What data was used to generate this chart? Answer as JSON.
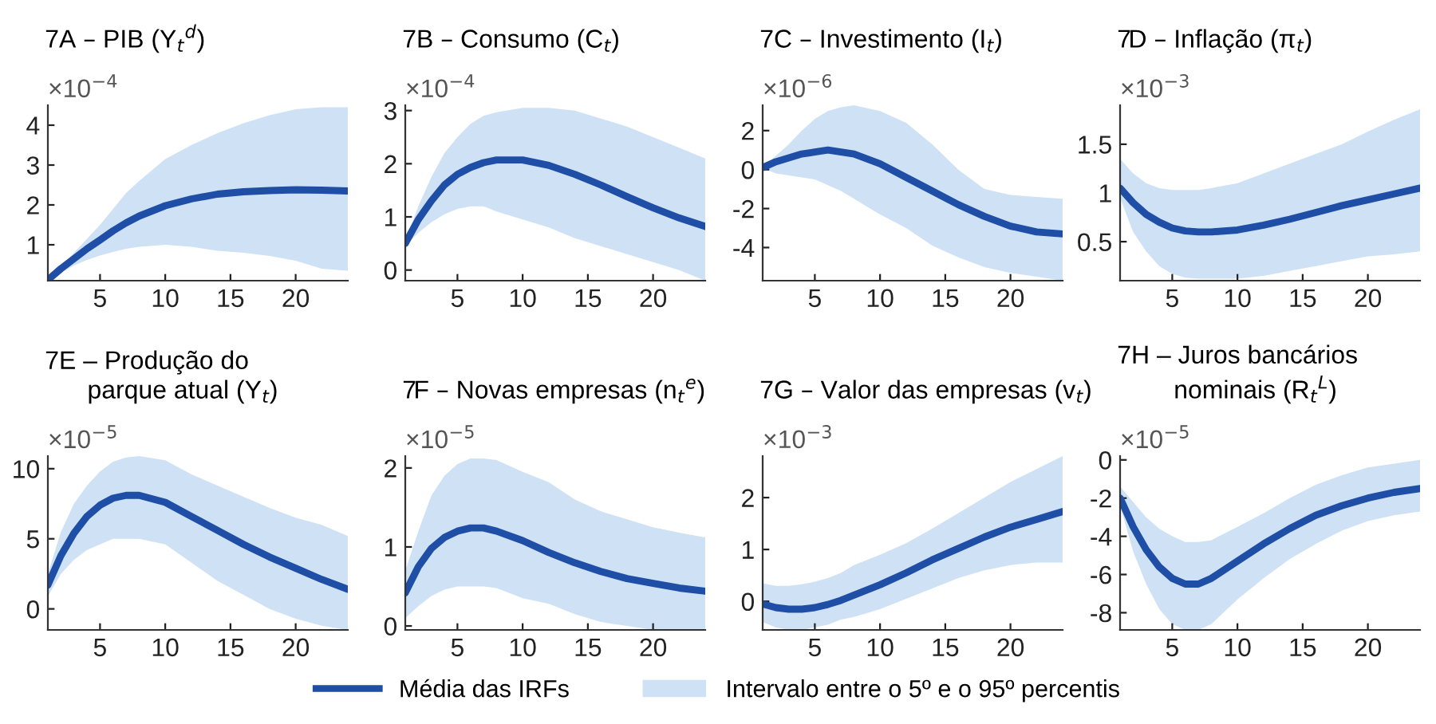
{
  "chart_data": [
    {
      "type": "line",
      "title": "7A – PIB (Y$_{t}$$^{d}$)",
      "annotations": [
        "×10$^{−4}$",
        "Intervalo entre o 5º e o 95º percentis"
      ],
      "legend": "bottom",
      "grid": false,
      "x": [
        1,
        2,
        3,
        4,
        5,
        6,
        7,
        8,
        10,
        12,
        14,
        16,
        18,
        20,
        22,
        24
      ],
      "xlim": [
        1,
        24
      ],
      "xticks": [
        5,
        10,
        15,
        20
      ],
      "ylim": [
        0.1,
        4.5
      ],
      "yticks": [
        1,
        2,
        3,
        4
      ],
      "series": [
        {
          "name": "Média das IRFs",
          "color": "#1f4ea6",
          "values": [
            0.12,
            0.4,
            0.65,
            0.9,
            1.12,
            1.35,
            1.55,
            1.72,
            1.98,
            2.15,
            2.27,
            2.33,
            2.36,
            2.38,
            2.37,
            2.35
          ],
          "lower": [
            0.12,
            0.3,
            0.48,
            0.62,
            0.73,
            0.82,
            0.9,
            0.95,
            1.0,
            0.95,
            0.85,
            0.8,
            0.72,
            0.6,
            0.4,
            0.35
          ],
          "upper": [
            0.12,
            0.45,
            0.8,
            1.15,
            1.5,
            1.9,
            2.3,
            2.6,
            3.15,
            3.5,
            3.8,
            4.05,
            4.25,
            4.4,
            4.45,
            4.45
          ]
        }
      ]
    },
    {
      "type": "line",
      "title": "7B – Consumo (C$_{t}$)",
      "annotations": [
        "×10$^{−4}$"
      ],
      "grid": false,
      "x": [
        1,
        2,
        3,
        4,
        5,
        6,
        7,
        8,
        10,
        12,
        14,
        16,
        18,
        20,
        22,
        24
      ],
      "xlim": [
        1,
        24
      ],
      "xticks": [
        5,
        10,
        15,
        20
      ],
      "ylim": [
        -0.2,
        3.1
      ],
      "yticks": [
        0,
        1,
        2,
        3
      ],
      "series": [
        {
          "color": "#1f4ea6",
          "values": [
            0.5,
            0.95,
            1.3,
            1.6,
            1.8,
            1.93,
            2.02,
            2.07,
            2.07,
            1.97,
            1.8,
            1.6,
            1.38,
            1.17,
            0.98,
            0.82
          ],
          "lower": [
            0.45,
            0.7,
            0.9,
            1.05,
            1.15,
            1.2,
            1.2,
            1.1,
            0.95,
            0.8,
            0.6,
            0.45,
            0.3,
            0.15,
            0.0,
            -0.2
          ],
          "upper": [
            0.55,
            1.2,
            1.75,
            2.2,
            2.5,
            2.75,
            2.9,
            2.97,
            3.05,
            3.05,
            3.0,
            2.85,
            2.7,
            2.5,
            2.3,
            2.1
          ]
        }
      ]
    },
    {
      "type": "line",
      "title": "7C – Investimento (I$_{t}$)",
      "annotations": [
        "×10$^{−6}$"
      ],
      "grid": false,
      "x": [
        1,
        2,
        3,
        4,
        5,
        6,
        7,
        8,
        10,
        12,
        14,
        16,
        18,
        20,
        22,
        24
      ],
      "xlim": [
        1,
        24
      ],
      "xticks": [
        5,
        10,
        15,
        20
      ],
      "ylim": [
        -5.7,
        3.3
      ],
      "yticks": [
        -4,
        -2,
        0,
        2
      ],
      "series": [
        {
          "color": "#1f4ea6",
          "values": [
            0.1,
            0.4,
            0.6,
            0.8,
            0.9,
            1.0,
            0.9,
            0.8,
            0.3,
            -0.4,
            -1.1,
            -1.8,
            -2.4,
            -2.9,
            -3.2,
            -3.3
          ],
          "lower": [
            0.1,
            -0.2,
            -0.3,
            -0.4,
            -0.5,
            -0.8,
            -1.1,
            -1.5,
            -2.3,
            -3.0,
            -3.9,
            -4.5,
            -5.0,
            -5.3,
            -5.5,
            -5.7
          ],
          "upper": [
            0.1,
            0.7,
            1.3,
            2.0,
            2.6,
            3.0,
            3.2,
            3.3,
            3.0,
            2.4,
            1.3,
            0.0,
            -1.0,
            -1.3,
            -1.4,
            -1.5
          ]
        }
      ]
    },
    {
      "type": "line",
      "title": "7D – Inflação (π$_{t}$)",
      "annotations": [
        "×10$^{−3}$"
      ],
      "grid": false,
      "x": [
        1,
        2,
        3,
        4,
        5,
        6,
        7,
        8,
        10,
        12,
        14,
        16,
        18,
        20,
        22,
        24
      ],
      "xlim": [
        1,
        24
      ],
      "xticks": [
        5,
        10,
        15,
        20
      ],
      "ylim": [
        0.1,
        1.9
      ],
      "yticks": [
        0.5,
        1,
        1.5
      ],
      "series": [
        {
          "color": "#1f4ea6",
          "values": [
            1.05,
            0.9,
            0.78,
            0.7,
            0.64,
            0.61,
            0.6,
            0.6,
            0.62,
            0.67,
            0.73,
            0.8,
            0.87,
            0.93,
            0.99,
            1.05
          ],
          "lower": [
            0.95,
            0.6,
            0.4,
            0.25,
            0.17,
            0.13,
            0.12,
            0.12,
            0.12,
            0.15,
            0.2,
            0.25,
            0.3,
            0.35,
            0.37,
            0.4
          ],
          "upper": [
            1.35,
            1.2,
            1.1,
            1.05,
            1.03,
            1.03,
            1.03,
            1.05,
            1.1,
            1.2,
            1.3,
            1.4,
            1.5,
            1.63,
            1.75,
            1.86
          ]
        }
      ]
    },
    {
      "type": "line",
      "title": "7E – Produção do\n      parque atual (Y$_{t}$)",
      "annotations": [
        "×10$^{−5}$"
      ],
      "grid": false,
      "x": [
        1,
        2,
        3,
        4,
        5,
        6,
        7,
        8,
        10,
        12,
        14,
        16,
        18,
        20,
        22,
        24
      ],
      "xlim": [
        1,
        24
      ],
      "xticks": [
        5,
        10,
        15,
        20
      ],
      "ylim": [
        -1.5,
        10.9
      ],
      "yticks": [
        0,
        5,
        10
      ],
      "series": [
        {
          "color": "#1f4ea6",
          "values": [
            1.7,
            3.8,
            5.4,
            6.6,
            7.4,
            7.9,
            8.1,
            8.1,
            7.6,
            6.6,
            5.6,
            4.6,
            3.7,
            2.9,
            2.1,
            1.4
          ],
          "lower": [
            0.9,
            2.5,
            3.5,
            4.2,
            4.6,
            5.0,
            5.0,
            5.0,
            4.6,
            3.3,
            2.0,
            1.0,
            0.0,
            -0.7,
            -1.2,
            -1.5
          ],
          "upper": [
            2.5,
            5.5,
            7.5,
            8.8,
            9.8,
            10.5,
            10.8,
            10.9,
            10.6,
            9.6,
            8.8,
            8.0,
            7.2,
            6.5,
            6.0,
            5.2
          ]
        }
      ]
    },
    {
      "type": "line",
      "title": "7F – Novas empresas (n$_{t}$$^{e}$)",
      "annotations": [
        "×10$^{−5}$"
      ],
      "grid": false,
      "x": [
        1,
        2,
        3,
        4,
        5,
        6,
        7,
        8,
        10,
        12,
        14,
        16,
        18,
        20,
        22,
        24
      ],
      "xlim": [
        1,
        24
      ],
      "xticks": [
        5,
        10,
        15,
        20
      ],
      "ylim": [
        -0.05,
        2.15
      ],
      "yticks": [
        0,
        1,
        2
      ],
      "series": [
        {
          "color": "#1f4ea6",
          "values": [
            0.42,
            0.75,
            0.98,
            1.12,
            1.2,
            1.24,
            1.24,
            1.2,
            1.08,
            0.93,
            0.8,
            0.69,
            0.6,
            0.54,
            0.48,
            0.44
          ],
          "lower": [
            0.1,
            0.25,
            0.38,
            0.46,
            0.5,
            0.5,
            0.5,
            0.48,
            0.35,
            0.28,
            0.15,
            0.05,
            0.0,
            -0.05,
            -0.05,
            -0.05
          ],
          "upper": [
            0.7,
            1.2,
            1.65,
            1.9,
            2.05,
            2.12,
            2.12,
            2.1,
            1.95,
            1.82,
            1.6,
            1.45,
            1.35,
            1.25,
            1.18,
            1.12
          ]
        }
      ]
    },
    {
      "type": "line",
      "title": "7G – Valor das empresas (v$_{t}$)",
      "annotations": [
        "×10$^{−3}$"
      ],
      "grid": false,
      "x": [
        1,
        2,
        3,
        4,
        5,
        6,
        7,
        8,
        10,
        12,
        14,
        16,
        18,
        20,
        22,
        24
      ],
      "xlim": [
        1,
        24
      ],
      "xticks": [
        5,
        10,
        15,
        20
      ],
      "ylim": [
        -0.55,
        2.8
      ],
      "yticks": [
        0,
        1,
        2
      ],
      "series": [
        {
          "color": "#1f4ea6",
          "values": [
            -0.05,
            -0.12,
            -0.15,
            -0.15,
            -0.12,
            -0.06,
            0.02,
            0.12,
            0.32,
            0.55,
            0.8,
            1.02,
            1.24,
            1.43,
            1.58,
            1.73
          ],
          "lower": [
            -0.4,
            -0.5,
            -0.55,
            -0.55,
            -0.5,
            -0.45,
            -0.35,
            -0.3,
            -0.15,
            0.05,
            0.25,
            0.45,
            0.6,
            0.7,
            0.75,
            0.75
          ],
          "upper": [
            0.35,
            0.3,
            0.3,
            0.33,
            0.38,
            0.45,
            0.55,
            0.7,
            0.9,
            1.12,
            1.4,
            1.7,
            2.0,
            2.3,
            2.55,
            2.8
          ]
        }
      ]
    },
    {
      "type": "line",
      "title": "7H – Juros bancários\n        nominais (R$_{t}$$^{L}$)",
      "annotations": [
        "×10$^{−5}$"
      ],
      "grid": false,
      "x": [
        1,
        2,
        3,
        4,
        5,
        6,
        7,
        8,
        10,
        12,
        14,
        16,
        18,
        20,
        22,
        24
      ],
      "xlim": [
        1,
        24
      ],
      "xticks": [
        5,
        10,
        15,
        20
      ],
      "ylim": [
        -8.9,
        0.2
      ],
      "yticks": [
        -8,
        -6,
        -4,
        -2,
        0
      ],
      "series": [
        {
          "color": "#1f4ea6",
          "values": [
            -2.0,
            -3.5,
            -4.7,
            -5.6,
            -6.2,
            -6.5,
            -6.5,
            -6.2,
            -5.3,
            -4.4,
            -3.6,
            -2.9,
            -2.4,
            -2.0,
            -1.7,
            -1.5
          ],
          "lower": [
            -2.4,
            -4.8,
            -6.5,
            -7.8,
            -8.6,
            -8.9,
            -8.9,
            -8.6,
            -7.3,
            -6.2,
            -5.2,
            -4.4,
            -3.7,
            -3.2,
            -2.9,
            -2.7
          ],
          "upper": [
            -1.4,
            -2.2,
            -3.0,
            -3.6,
            -4.0,
            -4.3,
            -4.3,
            -4.2,
            -3.5,
            -2.8,
            -2.0,
            -1.3,
            -0.8,
            -0.4,
            -0.2,
            0.0
          ]
        }
      ]
    }
  ]
}
